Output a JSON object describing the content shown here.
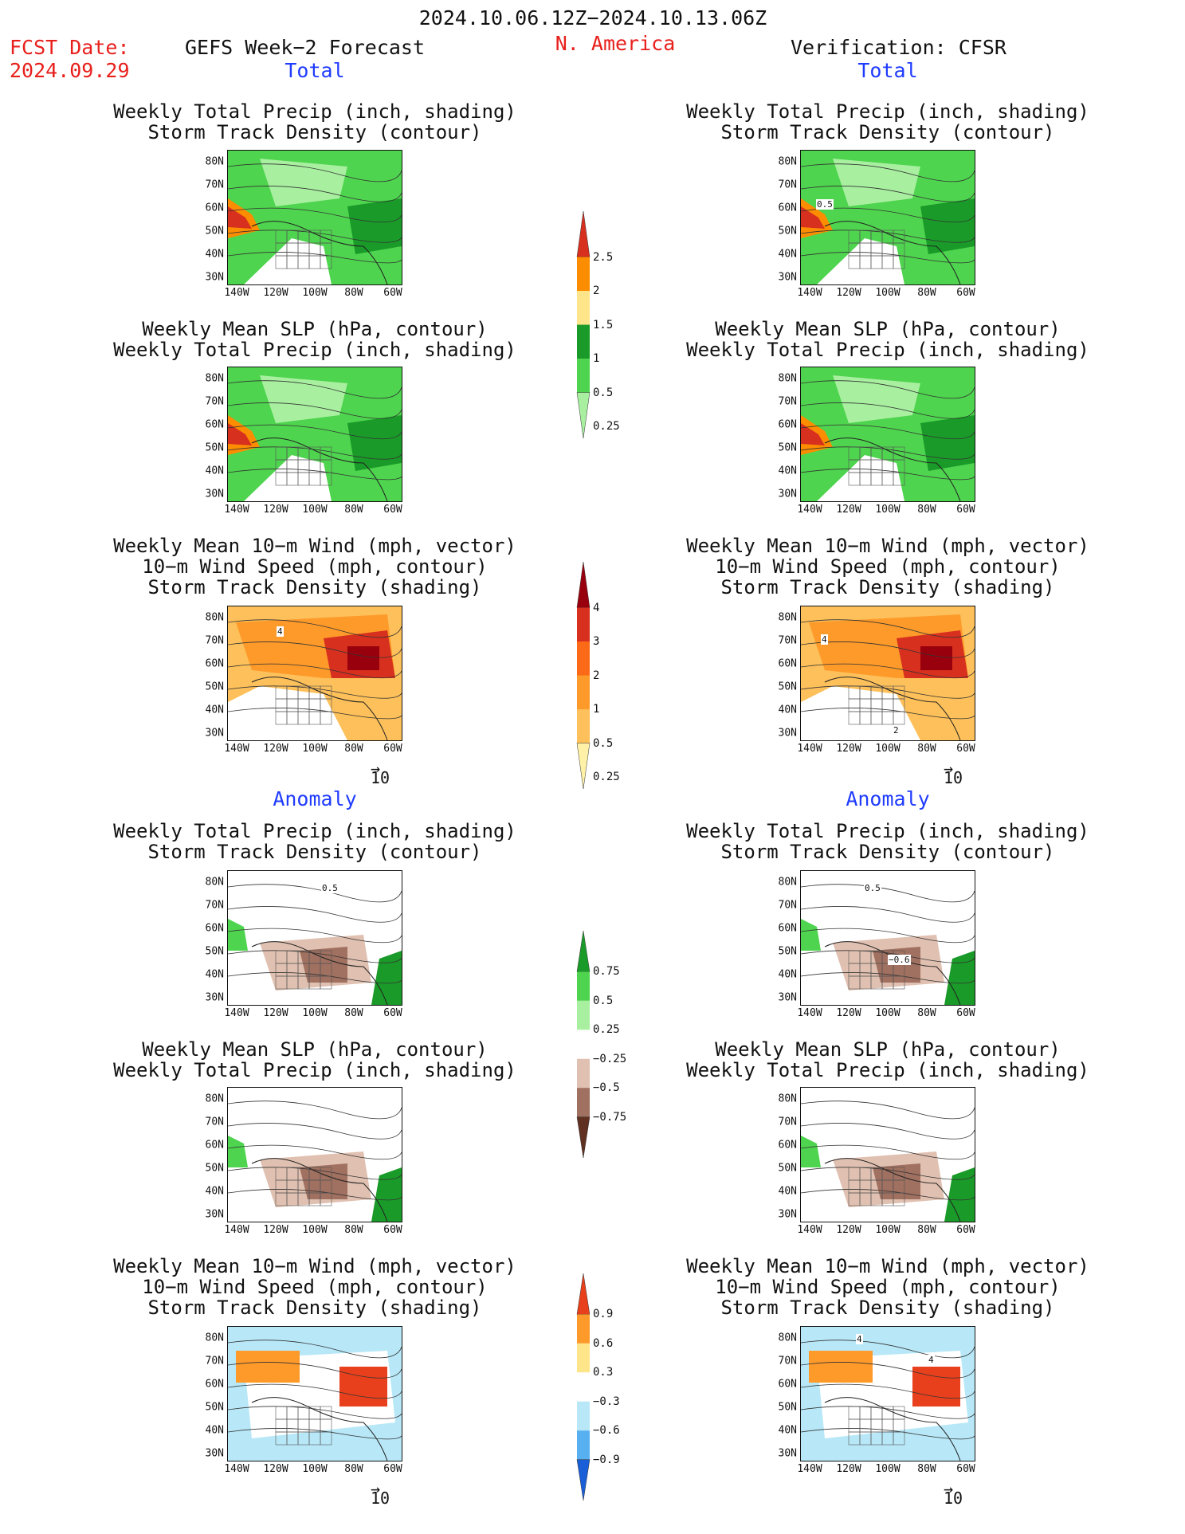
{
  "header": {
    "date_range": "2024.10.06.12Z−2024.10.13.06Z",
    "fcst_label": "FCST Date:",
    "fcst_date": "2024.09.29",
    "forecast_title": "GEFS Week−2 Forecast",
    "region": "N. America",
    "verification": "Verification: CFSR"
  },
  "sections": {
    "total": "Total",
    "anomaly": "Anomaly"
  },
  "titles": {
    "precip_track": [
      "Weekly Total Precip (inch, shading)",
      "Storm Track Density (contour)"
    ],
    "slp_precip": [
      "Weekly Mean SLP (hPa, contour)",
      "Weekly Total Precip (inch, shading)"
    ],
    "wind_track": [
      "Weekly Mean 10−m Wind (mph, vector)",
      "10−m Wind Speed (mph, contour)",
      "Storm Track Density (shading)"
    ]
  },
  "axes": {
    "lat": [
      "80N",
      "70N",
      "60N",
      "50N",
      "40N",
      "30N"
    ],
    "lon": [
      "140W",
      "120W",
      "100W",
      "80W",
      "60W"
    ]
  },
  "vector_ref": "10",
  "colorbars": [
    {
      "id": "precip_total",
      "labels": [
        "2.5",
        "2",
        "1.5",
        "1",
        "0.5",
        "0.25"
      ],
      "colors": [
        "#d7301f",
        "#fd8d00",
        "#fee58a",
        "#1a9a28",
        "#4ed44e",
        "#a8f0a0"
      ]
    },
    {
      "id": "track_total",
      "labels": [
        "4",
        "3",
        "2",
        "1",
        "0.5",
        "0.25"
      ],
      "colors": [
        "#99000d",
        "#d7301f",
        "#fc6a17",
        "#fd9a2a",
        "#fdc05a",
        "#fff2a8"
      ]
    },
    {
      "id": "precip_anom",
      "labels": [
        "0.75",
        "0.5",
        "0.25",
        "−0.25",
        "−0.5",
        "−0.75"
      ],
      "colors": [
        "#1a9a28",
        "#4ed44e",
        "#a8f0a0",
        "#ffffff",
        "#e0c0b0",
        "#a07060",
        "#603020"
      ]
    },
    {
      "id": "track_anom",
      "labels": [
        "0.9",
        "0.6",
        "0.3",
        "−0.3",
        "−0.6",
        "−0.9"
      ],
      "colors": [
        "#e8401c",
        "#fd9a2a",
        "#fee58a",
        "#ffffff",
        "#b8e8f8",
        "#58b0f0",
        "#1a5fd8"
      ]
    }
  ],
  "panel_annotations": {
    "ra1": "0.5",
    "fa3": "4",
    "ra3a": "4",
    "ra3b": "2",
    "fb1": "0.5",
    "rb1a": "0.5",
    "rb1b": "−0.6",
    "rb3a": "4",
    "rb3b": "4"
  }
}
